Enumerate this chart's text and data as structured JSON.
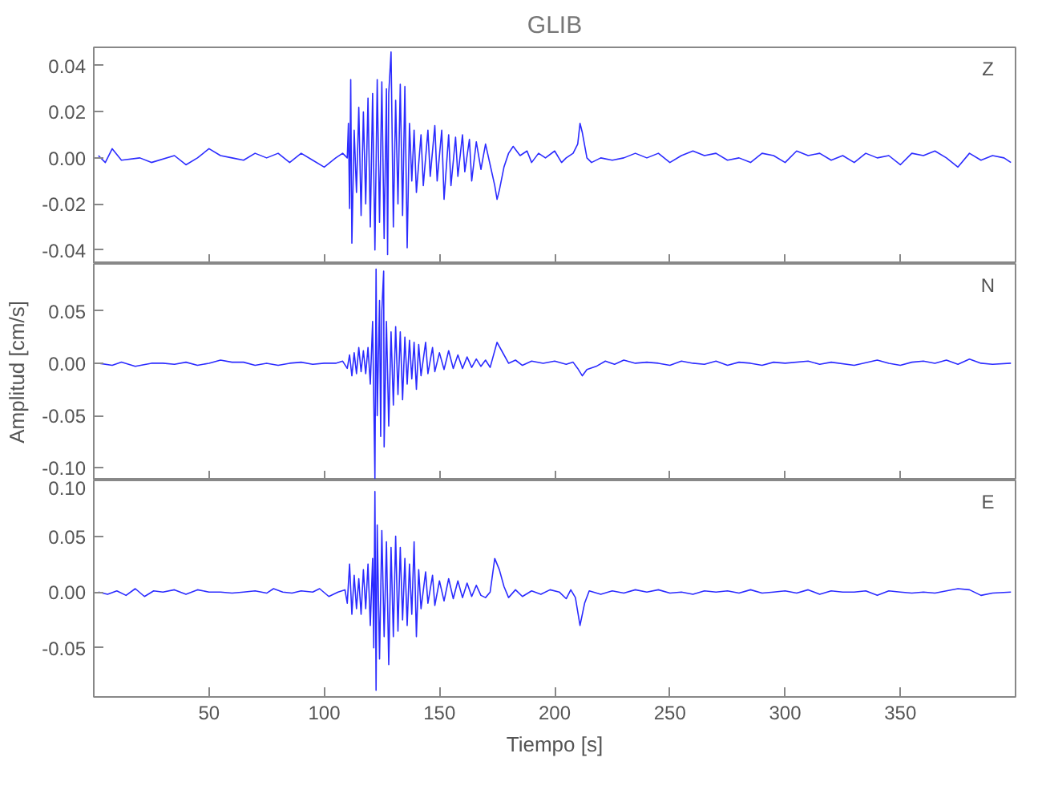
{
  "chart_data": [
    {
      "type": "line",
      "title": "GLIB",
      "annotations": [
        "Z"
      ],
      "tick_labels": "y",
      "line_style": "solid",
      "xlim": [
        0,
        400
      ],
      "xticks": [
        50,
        100,
        150,
        200,
        250,
        300,
        350
      ],
      "ylim": [
        -0.046,
        0.048
      ],
      "yticks": [
        {
          "value": -0.04,
          "label": "-0.04"
        },
        {
          "value": -0.02,
          "label": "-0.02"
        },
        {
          "value": 0,
          "label": "0.00"
        },
        {
          "value": 0.02,
          "label": "0.02"
        },
        {
          "value": 0.04,
          "label": "0.04"
        }
      ],
      "series": [
        {
          "color": "#2b2bff",
          "x": [
            2,
            5,
            8,
            12,
            20,
            25,
            35,
            40,
            45,
            50,
            55,
            60,
            65,
            70,
            75,
            80,
            85,
            90,
            95,
            100,
            105,
            108,
            110,
            110.5,
            111,
            111.5,
            112,
            113,
            114,
            115,
            116,
            117,
            118,
            119,
            120,
            121,
            122,
            123,
            124,
            125,
            126,
            127,
            127.5,
            128,
            129,
            130,
            131,
            132,
            133,
            134,
            135,
            136,
            137,
            138,
            139,
            140,
            142,
            143,
            145,
            146,
            148,
            149,
            151,
            152,
            154,
            155,
            157,
            158,
            160,
            161,
            163,
            164,
            166,
            168,
            170,
            172,
            174,
            175,
            176,
            178,
            180,
            182,
            185,
            188,
            190,
            193,
            196,
            200,
            203,
            205,
            208,
            210,
            211,
            212,
            214,
            216,
            220,
            225,
            230,
            235,
            240,
            245,
            250,
            255,
            260,
            265,
            270,
            275,
            280,
            285,
            290,
            295,
            300,
            305,
            310,
            315,
            320,
            325,
            330,
            335,
            340,
            345,
            350,
            355,
            360,
            365,
            370,
            375,
            380,
            385,
            390,
            395,
            398
          ],
          "values": [
            0.001,
            -0.002,
            0.004,
            -0.001,
            0.0,
            -0.002,
            0.001,
            -0.003,
            0.0,
            0.004,
            0.001,
            0.0,
            -0.001,
            0.002,
            0.0,
            0.002,
            -0.002,
            0.002,
            -0.001,
            -0.004,
            0.0,
            0.002,
            0.0,
            0.015,
            -0.022,
            0.034,
            -0.037,
            0.012,
            -0.015,
            0.022,
            -0.025,
            0.02,
            -0.02,
            0.026,
            -0.03,
            0.028,
            -0.04,
            0.034,
            -0.028,
            0.033,
            -0.035,
            0.03,
            -0.042,
            0.028,
            0.046,
            -0.03,
            0.025,
            -0.02,
            0.032,
            -0.025,
            0.031,
            -0.039,
            0.015,
            -0.01,
            0.012,
            -0.015,
            0.01,
            -0.012,
            0.012,
            -0.008,
            0.014,
            -0.01,
            0.012,
            -0.018,
            0.01,
            -0.012,
            0.009,
            -0.008,
            0.01,
            -0.006,
            0.008,
            -0.01,
            0.007,
            -0.005,
            0.006,
            -0.003,
            -0.012,
            -0.018,
            -0.014,
            -0.004,
            0.002,
            0.005,
            0.001,
            0.003,
            -0.002,
            0.002,
            0.0,
            0.003,
            -0.002,
            0.0,
            0.002,
            0.006,
            0.015,
            0.011,
            0.0,
            -0.002,
            0.0,
            -0.001,
            0.0,
            0.002,
            0.0,
            0.002,
            -0.002,
            0.001,
            0.003,
            0.001,
            0.002,
            -0.001,
            0.0,
            -0.002,
            0.002,
            0.001,
            -0.002,
            0.003,
            0.001,
            0.002,
            -0.001,
            0.001,
            -0.002,
            0.002,
            0.0,
            0.001,
            -0.003,
            0.002,
            0.001,
            0.003,
            0.0,
            -0.004,
            0.002,
            -0.001,
            0.001,
            0.0,
            -0.002
          ]
        }
      ]
    },
    {
      "type": "line",
      "ylabel": "Amplitud [cm/s]",
      "annotations": [
        "N"
      ],
      "tick_labels": "y",
      "line_style": "solid",
      "xlim": [
        0,
        400
      ],
      "xticks": [
        50,
        100,
        150,
        200,
        250,
        300,
        350
      ],
      "ylim": [
        -0.112,
        0.095
      ],
      "yticks": [
        {
          "value": -0.1,
          "label": "-0.10"
        },
        {
          "value": -0.05,
          "label": "-0.05"
        },
        {
          "value": 0,
          "label": "0.00"
        },
        {
          "value": 0.05,
          "label": "0.05"
        }
      ],
      "series": [
        {
          "color": "#2b2bff",
          "x": [
            2,
            8,
            12,
            18,
            25,
            30,
            35,
            40,
            45,
            50,
            55,
            60,
            65,
            70,
            75,
            80,
            85,
            90,
            95,
            100,
            105,
            108,
            110,
            111,
            112,
            113,
            114,
            115,
            116,
            117,
            118,
            119,
            120,
            121,
            122,
            122.5,
            123,
            124,
            124.5,
            125,
            125.8,
            126,
            127,
            128,
            129,
            130,
            131,
            132,
            133,
            134,
            135,
            136,
            137,
            138,
            139,
            140,
            141,
            142,
            144,
            145,
            147,
            148,
            150,
            152,
            154,
            156,
            158,
            160,
            162,
            164,
            166,
            168,
            170,
            172,
            175,
            177,
            180,
            183,
            186,
            190,
            195,
            200,
            205,
            208,
            210,
            212,
            214,
            218,
            222,
            226,
            230,
            235,
            240,
            245,
            250,
            255,
            260,
            265,
            270,
            275,
            280,
            285,
            290,
            295,
            300,
            310,
            315,
            320,
            330,
            340,
            345,
            350,
            355,
            360,
            365,
            370,
            375,
            380,
            385,
            390,
            398
          ],
          "values": [
            0.0,
            -0.002,
            0.001,
            -0.003,
            0.0,
            0.0,
            -0.001,
            0.001,
            -0.002,
            0.0,
            0.003,
            0.001,
            0.001,
            -0.002,
            0.0,
            -0.002,
            0.0,
            0.001,
            -0.001,
            0.0,
            0.0,
            0.002,
            -0.005,
            0.008,
            -0.012,
            0.01,
            -0.01,
            0.015,
            -0.008,
            0.012,
            -0.01,
            0.015,
            -0.02,
            0.04,
            -0.11,
            0.09,
            -0.05,
            0.06,
            -0.07,
            0.05,
            0.088,
            -0.08,
            0.04,
            -0.06,
            0.03,
            -0.04,
            0.035,
            -0.03,
            0.03,
            -0.035,
            0.025,
            -0.02,
            0.022,
            -0.015,
            0.02,
            -0.025,
            0.018,
            -0.012,
            0.02,
            -0.01,
            0.015,
            -0.008,
            0.01,
            -0.006,
            0.012,
            -0.005,
            0.008,
            -0.005,
            0.006,
            -0.004,
            0.004,
            -0.003,
            0.003,
            -0.004,
            0.02,
            0.012,
            0.0,
            0.003,
            -0.002,
            0.002,
            0.0,
            0.002,
            -0.001,
            0.001,
            -0.005,
            -0.012,
            -0.006,
            -0.003,
            0.002,
            -0.001,
            0.003,
            0.0,
            0.001,
            0.0,
            -0.002,
            0.002,
            0.0,
            -0.001,
            0.002,
            -0.002,
            0.001,
            0.0,
            -0.002,
            0.001,
            0.0,
            0.002,
            -0.001,
            0.001,
            -0.002,
            0.003,
            0.0,
            -0.002,
            0.001,
            0.002,
            0.0,
            0.003,
            -0.001,
            0.004,
            0.0,
            -0.001,
            0.0
          ]
        }
      ]
    },
    {
      "type": "line",
      "xlabel": "Tiempo [s]",
      "annotations": [
        "E"
      ],
      "line_style": "solid",
      "xlim": [
        0,
        400
      ],
      "xticks": [
        50,
        100,
        150,
        200,
        250,
        300,
        350
      ],
      "ylim": [
        -0.094,
        0.1
      ],
      "yticks": [
        {
          "value": -0.05,
          "label": "-0.05"
        },
        {
          "value": 0,
          "label": "0.00"
        },
        {
          "value": 0.05,
          "label": "0.05"
        },
        {
          "value": 0.1,
          "label": "0.10"
        }
      ],
      "series": [
        {
          "color": "#2b2bff",
          "x": [
            2,
            6,
            10,
            14,
            18,
            22,
            26,
            30,
            35,
            40,
            45,
            50,
            55,
            60,
            65,
            70,
            75,
            78,
            82,
            86,
            90,
            95,
            98,
            102,
            106,
            109,
            110,
            111,
            112,
            113,
            114,
            115,
            116,
            117,
            118,
            119,
            120,
            121,
            121.5,
            122,
            122.5,
            123,
            124,
            125,
            126,
            127,
            128,
            129,
            130,
            131,
            132,
            133,
            134,
            135,
            136,
            137,
            138,
            139,
            140,
            141,
            142,
            144,
            145,
            147,
            148,
            150,
            152,
            154,
            156,
            158,
            160,
            162,
            164,
            166,
            168,
            170,
            172,
            174,
            176,
            178,
            180,
            183,
            186,
            190,
            194,
            198,
            202,
            205,
            207,
            209,
            211,
            213,
            215,
            220,
            225,
            230,
            235,
            240,
            245,
            250,
            255,
            260,
            265,
            270,
            275,
            280,
            285,
            290,
            295,
            300,
            305,
            310,
            315,
            320,
            325,
            330,
            335,
            340,
            345,
            350,
            355,
            360,
            365,
            370,
            375,
            380,
            385,
            390,
            398
          ],
          "values": [
            0.0,
            -0.002,
            0.001,
            -0.003,
            0.003,
            -0.004,
            0.001,
            0.0,
            0.002,
            -0.002,
            0.002,
            0.0,
            0.0,
            -0.001,
            0.0,
            0.001,
            -0.001,
            0.003,
            0.0,
            -0.001,
            0.001,
            0.0,
            0.003,
            -0.004,
            0.0,
            0.002,
            -0.01,
            0.025,
            -0.02,
            0.015,
            -0.015,
            0.012,
            -0.02,
            0.02,
            -0.015,
            0.025,
            -0.03,
            0.03,
            -0.05,
            0.09,
            -0.088,
            0.06,
            -0.06,
            0.055,
            -0.04,
            0.045,
            -0.065,
            0.04,
            -0.04,
            0.05,
            -0.035,
            0.04,
            -0.025,
            0.03,
            -0.03,
            0.025,
            -0.02,
            0.045,
            -0.04,
            0.02,
            -0.015,
            0.018,
            -0.01,
            0.015,
            -0.012,
            0.01,
            -0.008,
            0.012,
            -0.006,
            0.01,
            -0.005,
            0.008,
            -0.004,
            0.006,
            -0.003,
            -0.005,
            0.0,
            0.03,
            0.02,
            0.005,
            -0.005,
            0.002,
            -0.004,
            0.001,
            -0.002,
            0.002,
            0.0,
            -0.006,
            0.002,
            -0.005,
            -0.03,
            -0.01,
            0.001,
            -0.002,
            0.001,
            -0.001,
            0.002,
            0.0,
            0.002,
            -0.001,
            0.0,
            -0.002,
            0.001,
            0.0,
            0.001,
            -0.001,
            0.002,
            -0.001,
            0.0,
            0.001,
            -0.001,
            0.002,
            -0.002,
            0.001,
            0.0,
            0.0,
            0.001,
            -0.003,
            0.001,
            0.0,
            -0.001,
            0.0,
            -0.001,
            0.001,
            0.003,
            0.002,
            -0.003,
            -0.001,
            0.0
          ]
        }
      ]
    }
  ]
}
